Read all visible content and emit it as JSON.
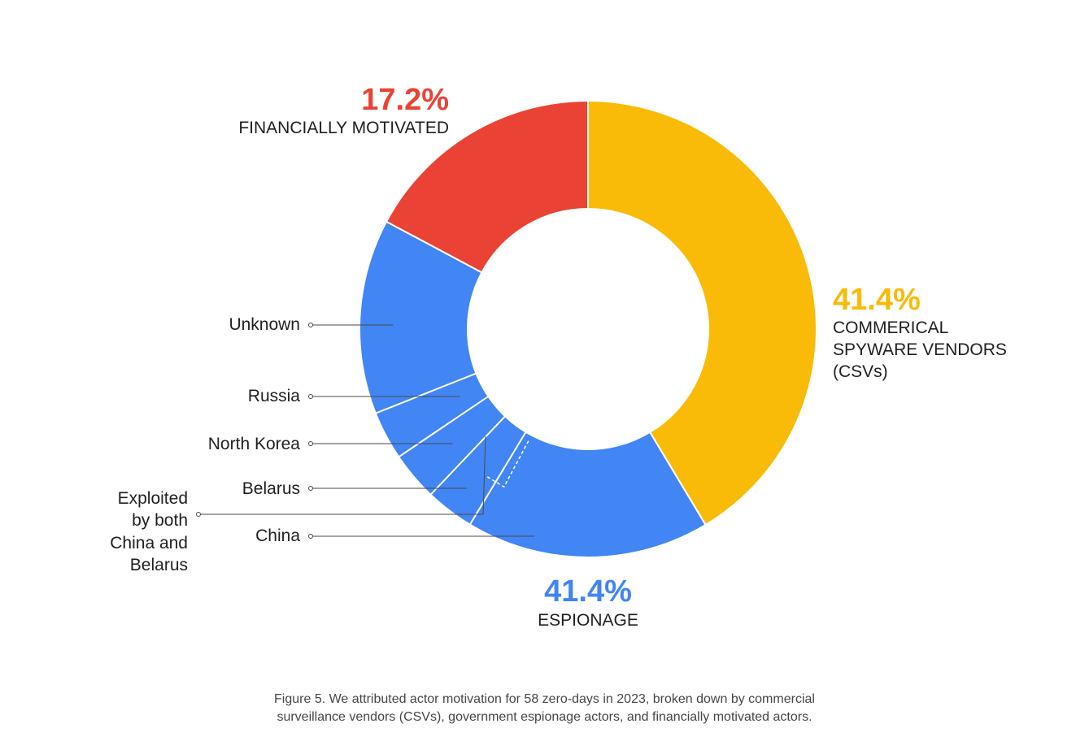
{
  "chart_data": {
    "type": "donut",
    "total_zero_days": 58,
    "categories": [
      {
        "label": "COMMERICAL SPYWARE VENDORS (CSVs)",
        "label_lines": [
          "COMMERICAL",
          "SPYWARE VENDORS",
          "(CSVs)"
        ],
        "percent_label": "41.4%",
        "percent": 41.4,
        "color": "#f9bb07"
      },
      {
        "label": "ESPIONAGE",
        "label_lines": [
          "ESPIONAGE"
        ],
        "percent_label": "41.4%",
        "percent": 41.4,
        "color": "#4285f4"
      },
      {
        "label": "FINANCIALLY MOTIVATED",
        "label_lines": [
          "FINANCIALLY MOTIVATED"
        ],
        "percent_label": "17.2%",
        "percent": 17.2,
        "color": "#ea4335"
      }
    ],
    "espionage_breakdown": [
      {
        "label": "China",
        "count": 10
      },
      {
        "label": "Belarus",
        "count": 2
      },
      {
        "label": "North Korea",
        "count": 2
      },
      {
        "label": "Russia",
        "count": 2
      },
      {
        "label": "Unknown",
        "count": 8
      }
    ],
    "overlap_annotation": {
      "label_lines": [
        "Exploited",
        "by both",
        "China and",
        "Belarus"
      ],
      "count": 1
    }
  },
  "caption": {
    "line1": "Figure 5. We attributed actor motivation for 58 zero-days in 2023, broken down by commercial",
    "line2": "surveillance vendors (CSVs), government espionage actors, and financially motivated actors."
  }
}
